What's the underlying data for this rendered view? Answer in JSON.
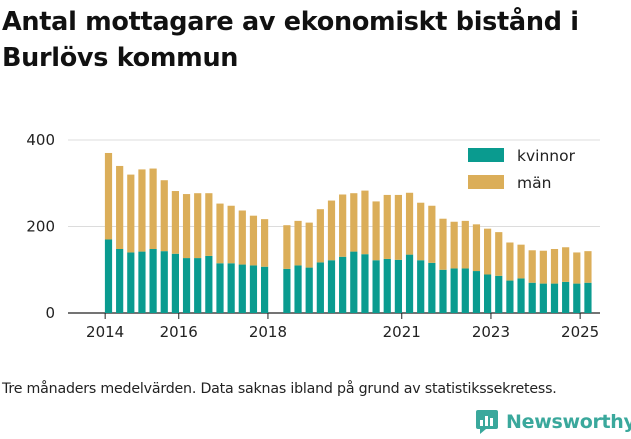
{
  "title": "Antal mottagare av ekonomiskt bistånd i Burlövs kommun",
  "caption": "Tre månaders medelvärden. Data saknas ibland på grund av statistikssekretess.",
  "brand": "Newsworthy",
  "colors": {
    "kvinnor": "#0a9b8f",
    "man": "#dbae59",
    "grid": "#dcdcdc",
    "brand": "#3aa89c"
  },
  "chart_data": {
    "type": "bar",
    "stacked": true,
    "ylim": [
      0,
      400
    ],
    "yticks": [
      0,
      200,
      400
    ],
    "xticks": [
      "2014",
      "2016",
      "2018",
      "2021",
      "2023",
      "2025"
    ],
    "grid": true,
    "legend_position": "top-right",
    "series": [
      {
        "name": "kvinnor",
        "values": [
          170,
          148,
          140,
          142,
          148,
          143,
          137,
          127,
          127,
          132,
          115,
          115,
          112,
          110,
          107,
          null,
          102,
          110,
          105,
          117,
          122,
          130,
          142,
          136,
          122,
          125,
          123,
          135,
          122,
          116,
          100,
          103,
          103,
          97,
          89,
          86,
          75,
          80,
          70,
          68,
          68,
          72,
          68,
          70
        ]
      },
      {
        "name": "män",
        "values": [
          200,
          192,
          180,
          190,
          186,
          164,
          145,
          148,
          150,
          145,
          138,
          133,
          125,
          115,
          110,
          null,
          101,
          103,
          104,
          123,
          138,
          144,
          135,
          147,
          136,
          148,
          150,
          143,
          133,
          132,
          118,
          108,
          110,
          108,
          106,
          101,
          88,
          78,
          75,
          76,
          80,
          80,
          72,
          73
        ]
      }
    ]
  }
}
